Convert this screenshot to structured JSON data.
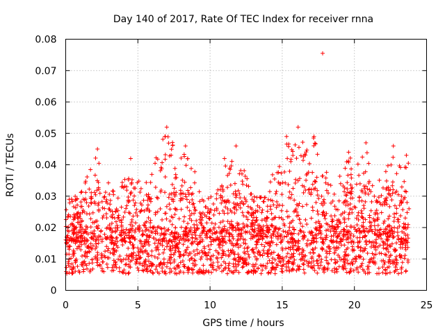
{
  "chart_data": {
    "type": "scatter",
    "title": "Day 140 of 2017, Rate Of TEC Index for receiver rnna",
    "xlabel": "GPS time / hours",
    "ylabel": "ROTI / TECUs",
    "xlim": [
      0,
      25
    ],
    "ylim": [
      0,
      0.08
    ],
    "x_ticks": [
      "0",
      "5",
      "10",
      "15",
      "20",
      "25"
    ],
    "y_ticks": [
      "0",
      "0.01",
      "0.02",
      "0.03",
      "0.04",
      "0.05",
      "0.06",
      "0.07",
      "0.08"
    ],
    "grid": true,
    "marker": "plus",
    "point_color": "#ff0000",
    "x_range_observed": [
      0,
      23.8
    ],
    "baseline_level": 0.015,
    "peaks": [
      {
        "x": 2.2,
        "y": 0.045
      },
      {
        "x": 4.5,
        "y": 0.042
      },
      {
        "x": 7.0,
        "y": 0.052
      },
      {
        "x": 8.3,
        "y": 0.046
      },
      {
        "x": 11.0,
        "y": 0.042
      },
      {
        "x": 11.8,
        "y": 0.046
      },
      {
        "x": 15.3,
        "y": 0.049
      },
      {
        "x": 16.1,
        "y": 0.052
      },
      {
        "x": 17.2,
        "y": 0.049
      },
      {
        "x": 17.8,
        "y": 0.0755
      },
      {
        "x": 19.6,
        "y": 0.044
      },
      {
        "x": 20.8,
        "y": 0.047
      },
      {
        "x": 22.7,
        "y": 0.046
      },
      {
        "x": 23.6,
        "y": 0.043
      }
    ]
  }
}
